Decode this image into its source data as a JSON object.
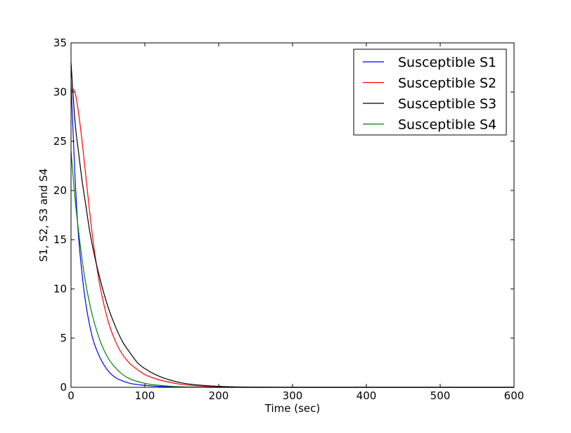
{
  "chart_data": {
    "type": "line",
    "title": "",
    "xlabel": "Time (sec)",
    "ylabel": "S1, S2, S3 and S4",
    "xlim": [
      0,
      600
    ],
    "ylim": [
      0,
      35
    ],
    "xticks": [
      0,
      100,
      200,
      300,
      400,
      500,
      600
    ],
    "yticks": [
      0,
      5,
      10,
      15,
      20,
      25,
      30,
      35
    ],
    "grid": false,
    "legend_position": "top-right",
    "series": [
      {
        "name": "Susceptible S1",
        "color": "#0000ff",
        "x": [
          0,
          5,
          10,
          15,
          20,
          25,
          30,
          40,
          50,
          60,
          70,
          80,
          100,
          120,
          150,
          200,
          300,
          600
        ],
        "y": [
          31.0,
          22.0,
          15.5,
          11.5,
          8.5,
          6.4,
          4.8,
          2.9,
          1.7,
          1.0,
          0.65,
          0.4,
          0.2,
          0.1,
          0.03,
          0.0,
          0.0,
          0.0
        ]
      },
      {
        "name": "Susceptible S2",
        "color": "#ff0000",
        "x": [
          0,
          3,
          6,
          10,
          15,
          20,
          25,
          30,
          35,
          40,
          50,
          60,
          70,
          80,
          90,
          100,
          120,
          150,
          200,
          250,
          300,
          600
        ],
        "y": [
          30.0,
          30.3,
          29.8,
          28.0,
          25.0,
          21.5,
          18.0,
          14.8,
          12.2,
          10.0,
          6.8,
          4.7,
          3.3,
          2.4,
          1.8,
          1.3,
          0.75,
          0.3,
          0.05,
          0.0,
          0.0,
          0.0
        ]
      },
      {
        "name": "Susceptible S3",
        "color": "#000000",
        "x": [
          0,
          3,
          6,
          10,
          15,
          20,
          25,
          30,
          40,
          50,
          60,
          70,
          80,
          90,
          100,
          120,
          150,
          200,
          250,
          300,
          600
        ],
        "y": [
          33.0,
          29.5,
          26.5,
          24.0,
          21.0,
          18.5,
          16.0,
          14.0,
          10.8,
          8.2,
          6.2,
          4.6,
          3.5,
          2.5,
          1.9,
          1.1,
          0.45,
          0.1,
          0.02,
          0.0,
          0.0
        ]
      },
      {
        "name": "Susceptible S4",
        "color": "#008000",
        "x": [
          0,
          5,
          10,
          15,
          20,
          25,
          30,
          40,
          50,
          60,
          70,
          80,
          100,
          120,
          150,
          200,
          300,
          600
        ],
        "y": [
          24.0,
          19.5,
          16.0,
          13.0,
          10.5,
          8.6,
          7.0,
          4.6,
          3.0,
          2.0,
          1.3,
          0.85,
          0.4,
          0.2,
          0.05,
          0.0,
          0.0,
          0.0
        ]
      }
    ]
  }
}
